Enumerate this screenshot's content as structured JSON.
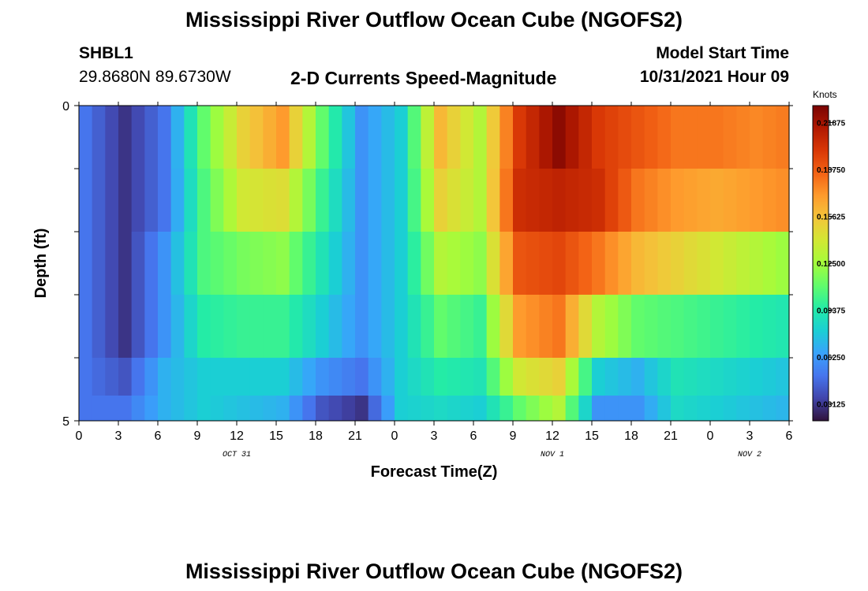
{
  "page": {
    "title": "Mississippi River Outflow Ocean Cube (NGOFS2)",
    "bottom_title": "Mississippi River Outflow Ocean Cube (NGOFS2)",
    "station_id": "SHBL1",
    "station_coords": "29.8680N  89.6730W",
    "subtitle": "2-D Currents Speed-Magnitude",
    "model_label": "Model Start Time",
    "model_time": "10/31/2021 Hour 09"
  },
  "chart_data": {
    "type": "heatmap",
    "title": "2-D Currents Speed-Magnitude",
    "xlabel": "Forecast Time(Z)",
    "ylabel": "Depth (ft)",
    "x_ticks": [
      "0",
      "3",
      "6",
      "9",
      "12",
      "15",
      "18",
      "21",
      "0",
      "3",
      "6",
      "9",
      "12",
      "15",
      "18",
      "21",
      "0",
      "3",
      "6"
    ],
    "x_range_hours": [
      0,
      54
    ],
    "date_labels": [
      {
        "text": "OCT 31",
        "hour": 12
      },
      {
        "text": "NOV 1",
        "hour": 36
      },
      {
        "text": "NOV 2",
        "hour": 51
      }
    ],
    "y_ticks": [
      "0",
      "5"
    ],
    "y_range": [
      0,
      5
    ],
    "depth_levels": [
      0.5,
      1.5,
      2.5,
      3.5,
      4.5
    ],
    "colorbar": {
      "label": "Knots",
      "ticks": [
        "0.21875",
        "0.18750",
        "0.15625",
        "0.12500",
        "0.09375",
        "0.06250",
        "0.03125"
      ],
      "range": [
        0.02,
        0.23
      ],
      "colors": [
        "#30123b",
        "#4145ab",
        "#4675ed",
        "#39a2fc",
        "#1bcfd4",
        "#24eca6",
        "#61fc6c",
        "#a4fc3b",
        "#d1e834",
        "#f3c63a",
        "#fe9b2d",
        "#f36315",
        "#d93806",
        "#b11901",
        "#7a0403"
      ]
    },
    "series": [
      {
        "depth": 0.5,
        "knots_by_3h": [
          0.05,
          0.03,
          0.05,
          0.11,
          0.15,
          0.17,
          0.11,
          0.06,
          0.08,
          0.16,
          0.13,
          0.2,
          0.225,
          0.2,
          0.19,
          0.18,
          0.18,
          0.175,
          0.18
        ]
      },
      {
        "depth": 1.5,
        "knots_by_3h": [
          0.05,
          0.03,
          0.05,
          0.105,
          0.14,
          0.145,
          0.1,
          0.06,
          0.08,
          0.15,
          0.13,
          0.205,
          0.21,
          0.205,
          0.18,
          0.17,
          0.165,
          0.17,
          0.175
        ]
      },
      {
        "depth": 2.5,
        "knots_by_3h": [
          0.05,
          0.03,
          0.06,
          0.105,
          0.115,
          0.12,
          0.09,
          0.06,
          0.08,
          0.13,
          0.12,
          0.19,
          0.195,
          0.18,
          0.16,
          0.15,
          0.14,
          0.13,
          0.12
        ]
      },
      {
        "depth": 3.5,
        "knots_by_3h": [
          0.05,
          0.03,
          0.06,
          0.095,
          0.1,
          0.1,
          0.08,
          0.06,
          0.08,
          0.11,
          0.1,
          0.17,
          0.18,
          0.13,
          0.11,
          0.105,
          0.1,
          0.095,
          0.09
        ]
      },
      {
        "depth": 4.5,
        "knots_by_3h": [
          0.05,
          0.04,
          0.07,
          0.08,
          0.08,
          0.08,
          0.06,
          0.05,
          0.08,
          0.095,
          0.09,
          0.14,
          0.15,
          0.08,
          0.07,
          0.09,
          0.085,
          0.08,
          0.075
        ]
      },
      {
        "depth": 5.0,
        "knots_by_3h": [
          0.05,
          0.05,
          0.07,
          0.08,
          0.075,
          0.07,
          0.04,
          0.03,
          0.08,
          0.085,
          0.08,
          0.11,
          0.13,
          0.06,
          0.06,
          0.085,
          0.08,
          0.075,
          0.07
        ]
      }
    ]
  }
}
